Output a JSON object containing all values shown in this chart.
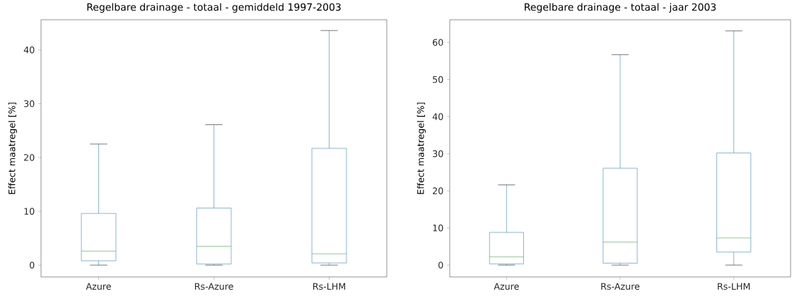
{
  "chart_data": [
    {
      "type": "box",
      "title": "Regelbare drainage - totaal - gemiddeld 1997-2003",
      "ylabel": "Effect maatregel [%]",
      "categories": [
        "Azure",
        "Rs-Azure",
        "Rs-LHM"
      ],
      "boxes": [
        {
          "low": 0,
          "q1": 0.8,
          "median": 2.6,
          "q3": 9.6,
          "high": 22.5
        },
        {
          "low": 0,
          "q1": 0.2,
          "median": 3.5,
          "q3": 10.6,
          "high": 26.1
        },
        {
          "low": 0,
          "q1": 0.4,
          "median": 2.1,
          "q3": 21.7,
          "high": 43.6
        }
      ],
      "ylim": [
        -2.2,
        45.6
      ],
      "yticks": [
        0,
        10,
        20,
        30,
        40
      ],
      "grid": false
    },
    {
      "type": "box",
      "title": "Regelbare drainage - totaal - jaar 2003",
      "ylabel": "Effect maatregel [%]",
      "categories": [
        "Azure",
        "Rs-Azure",
        "Rs-LHM"
      ],
      "boxes": [
        {
          "low": 0,
          "q1": 0.3,
          "median": 2.2,
          "q3": 8.8,
          "high": 21.6
        },
        {
          "low": 0,
          "q1": 0.5,
          "median": 6.2,
          "q3": 26.1,
          "high": 56.7
        },
        {
          "low": 0,
          "q1": 3.5,
          "median": 7.3,
          "q3": 30.2,
          "high": 63.1
        }
      ],
      "ylim": [
        -3.2,
        66.1
      ],
      "yticks": [
        0,
        10,
        20,
        30,
        40,
        50,
        60
      ],
      "grid": false
    }
  ]
}
